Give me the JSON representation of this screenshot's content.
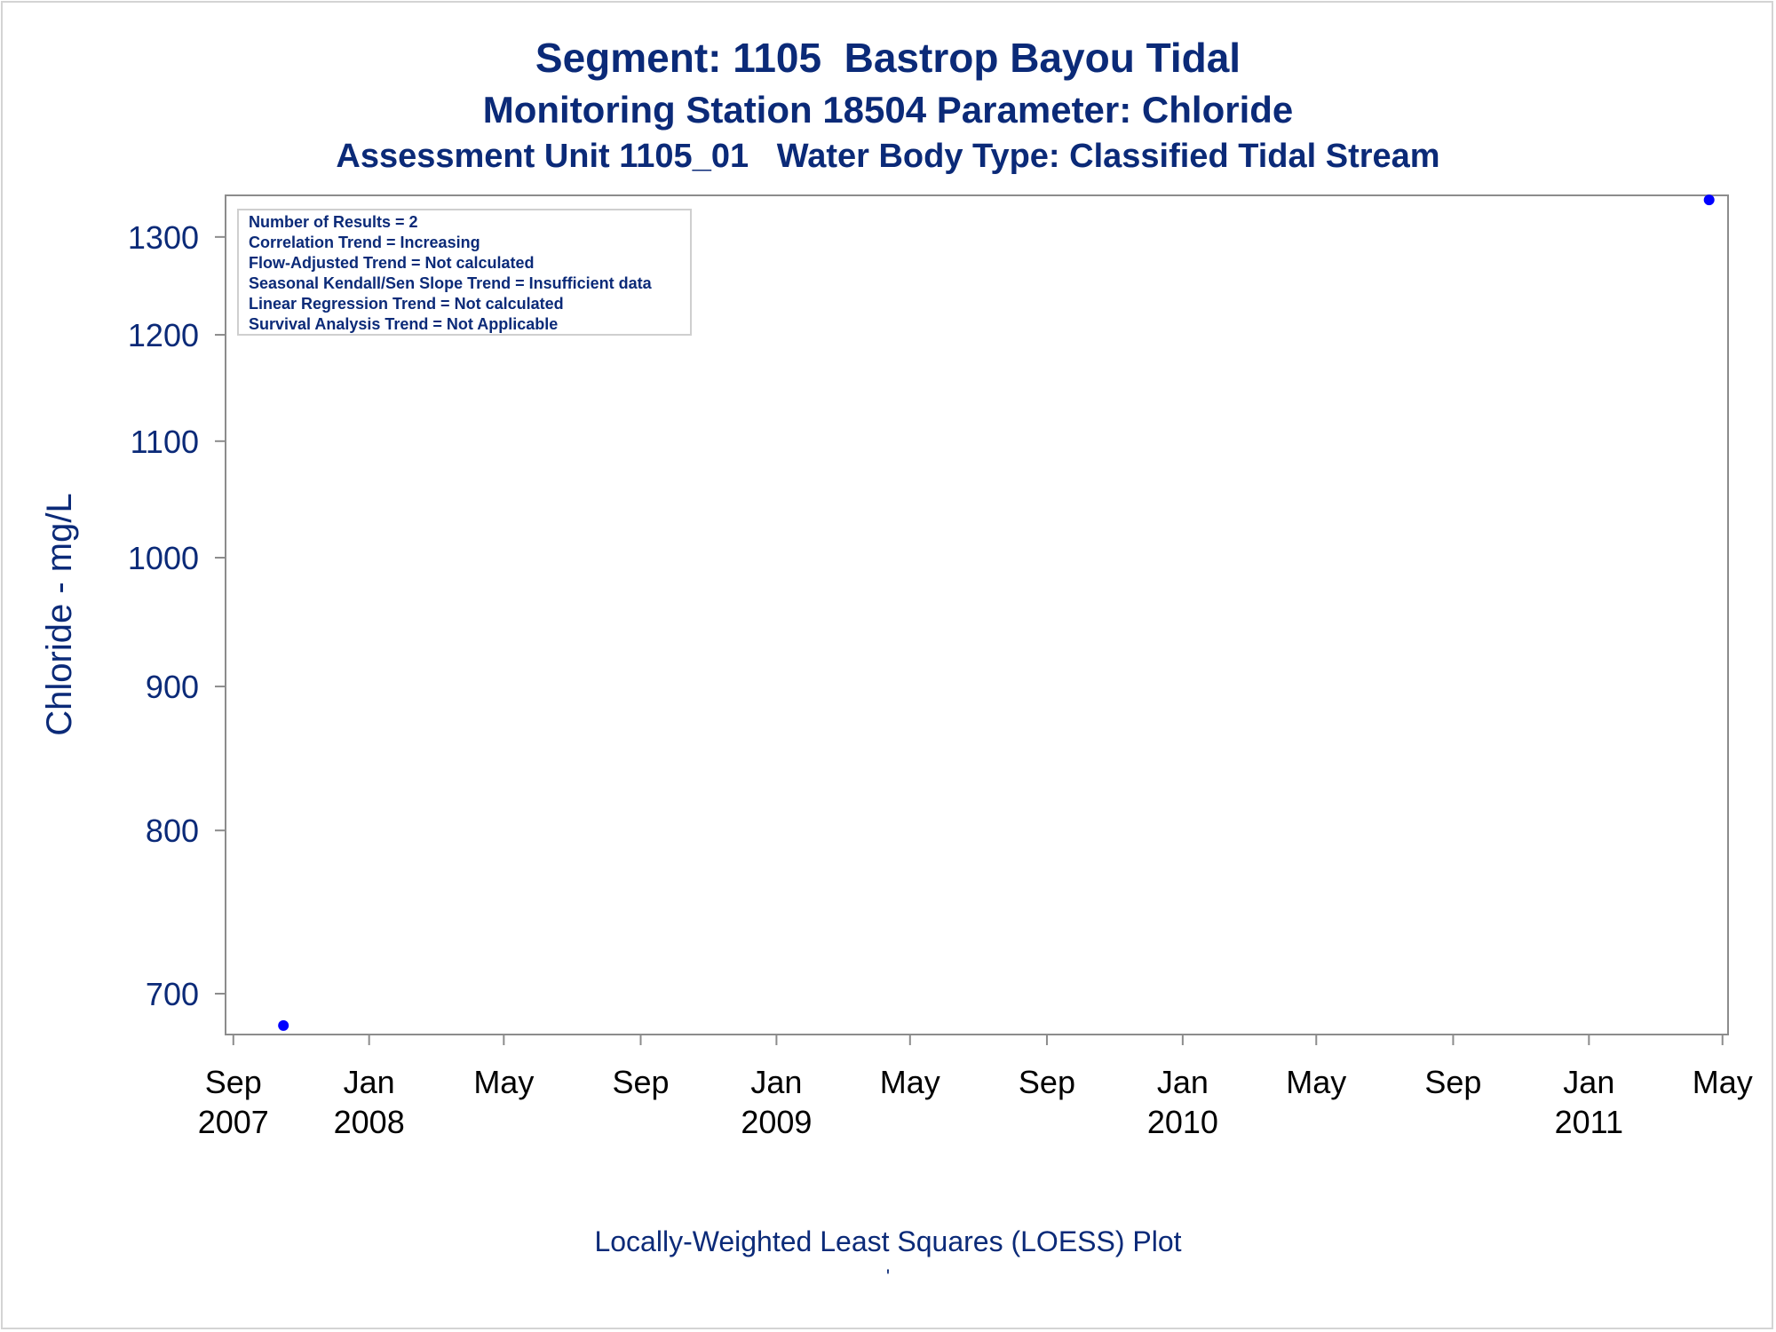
{
  "chart_data": {
    "type": "scatter",
    "title": "Segment: 1105  Bastrop Bayou Tidal",
    "subtitles": [
      "Monitoring Station 18504 Parameter: Chloride",
      "Assessment Unit 1105_01   Water Body Type: Classified Tidal Stream"
    ],
    "ylabel": "Chloride - mg/L",
    "footnote": "Locally-Weighted Least Squares (LOESS) Plot",
    "footnote2": "'",
    "y_scale": "log",
    "ylim": [
      677,
      1345
    ],
    "y_ticks": [
      700,
      800,
      900,
      1000,
      1100,
      1200,
      1300
    ],
    "xlim": [
      "2007-08-25",
      "2011-05-06"
    ],
    "x_ticks": [
      {
        "date": "2007-09-01",
        "label": "Sep",
        "year": "2007"
      },
      {
        "date": "2008-01-01",
        "label": "Jan",
        "year": "2008"
      },
      {
        "date": "2008-05-01",
        "label": "May",
        "year": ""
      },
      {
        "date": "2008-09-01",
        "label": "Sep",
        "year": ""
      },
      {
        "date": "2009-01-01",
        "label": "Jan",
        "year": "2009"
      },
      {
        "date": "2009-05-01",
        "label": "May",
        "year": ""
      },
      {
        "date": "2009-09-01",
        "label": "Sep",
        "year": ""
      },
      {
        "date": "2010-01-01",
        "label": "Jan",
        "year": "2010"
      },
      {
        "date": "2010-05-01",
        "label": "May",
        "year": ""
      },
      {
        "date": "2010-09-01",
        "label": "Sep",
        "year": ""
      },
      {
        "date": "2011-01-01",
        "label": "Jan",
        "year": "2011"
      },
      {
        "date": "2011-05-01",
        "label": "May",
        "year": ""
      }
    ],
    "points": [
      {
        "date": "2007-10-16",
        "value": 682
      },
      {
        "date": "2011-04-19",
        "value": 1340
      }
    ],
    "stats_box": [
      "Number of Results = 2",
      "Correlation Trend = Increasing",
      "Flow-Adjusted Trend = Not calculated",
      "Seasonal Kendall/Sen Slope Trend = Insufficient data",
      "Linear Regression Trend = Not calculated",
      "Survival Analysis Trend = Not Applicable"
    ],
    "grid": false,
    "legend": "none",
    "colors": {
      "text": "#0b2a78",
      "point": "#0000ff",
      "axis": "#8c8c8c",
      "tick_label": "#000000"
    }
  }
}
